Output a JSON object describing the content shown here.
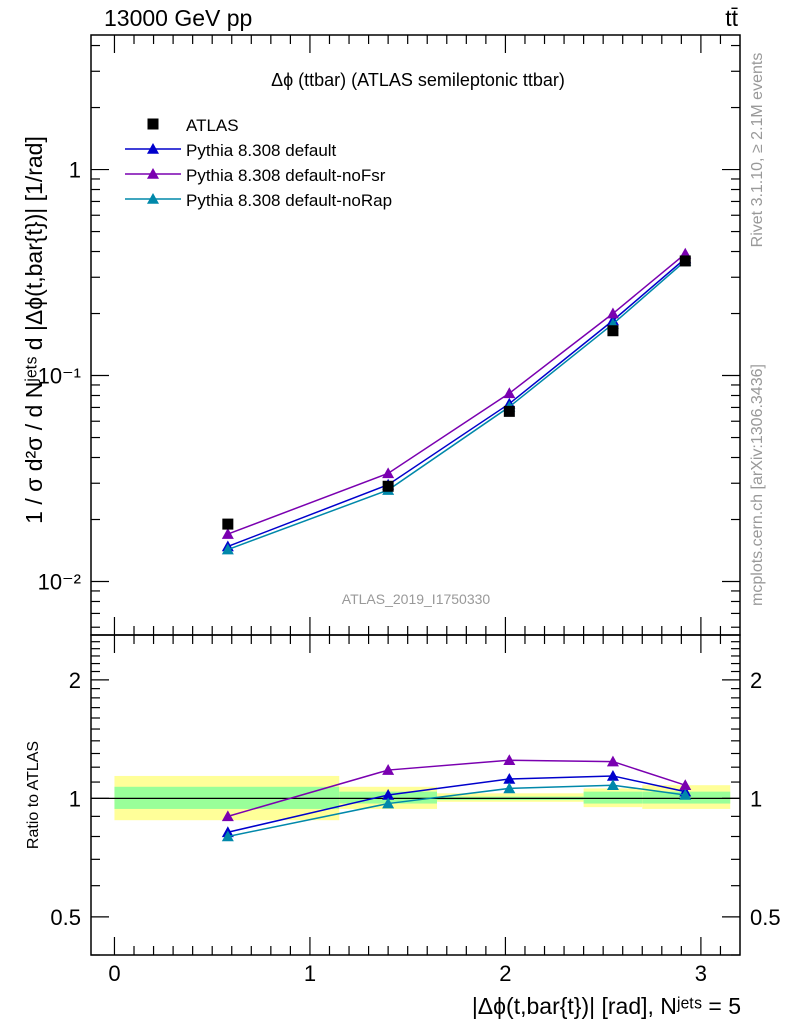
{
  "header": {
    "energy_label": "13000 GeV pp",
    "process_label": "tt̄"
  },
  "side": {
    "rivet_label": "Rivet 3.1.10, ≥ 2.1M events",
    "source_label": "mcplots.cern.ch [arXiv:1306.3436]"
  },
  "chart_data": [
    {
      "type": "line",
      "title": "Δϕ (ttbar) (ATLAS semileptonic ttbar)",
      "ylabel": "1 / σ d²σ / d Nʲᵉᵗˢ d |Δϕ(t,bar{t})| [1/rad]",
      "xlabel": "",
      "yscale": "log",
      "xlim": [
        -0.12,
        3.2
      ],
      "ylim": [
        0.0055,
        4.5
      ],
      "yticks": [
        0.01,
        0.1,
        1
      ],
      "ytick_labels": [
        "10⁻²",
        "10⁻¹",
        "1"
      ],
      "analysis_label": "ATLAS_2019_I1750330",
      "legend_position": "top-left",
      "grid": false,
      "x": [
        0.58,
        1.4,
        2.02,
        2.55,
        2.92
      ],
      "data": {
        "name": "ATLAS",
        "marker": "square",
        "color": "#000000",
        "values": [
          0.019,
          0.029,
          0.067,
          0.165,
          0.36
        ]
      },
      "series": [
        {
          "name": "Pythia 8.308 default",
          "color": "#0000cc",
          "marker": "triangle",
          "values": [
            0.0148,
            0.0295,
            0.073,
            0.185,
            0.37
          ]
        },
        {
          "name": "Pythia 8.308 default-noFsr",
          "color": "#7a00b0",
          "marker": "triangle",
          "values": [
            0.017,
            0.0335,
            0.082,
            0.2,
            0.39
          ]
        },
        {
          "name": "Pythia 8.308 default-noRap",
          "color": "#0088aa",
          "marker": "triangle",
          "values": [
            0.0143,
            0.0278,
            0.0705,
            0.178,
            0.36
          ]
        }
      ]
    },
    {
      "type": "line",
      "title": "",
      "ylabel": "Ratio to ATLAS",
      "xlabel": "|Δϕ(t,bar{t})| [rad], Nʲᵉᵗˢ = 5",
      "yscale": "log",
      "xlim": [
        -0.12,
        3.2
      ],
      "ylim": [
        0.4,
        2.6
      ],
      "yticks": [
        0.5,
        1,
        2
      ],
      "ytick_labels": [
        "0.5",
        "1",
        "2"
      ],
      "xticks": [
        0,
        1,
        2,
        3
      ],
      "xtick_labels": [
        "0",
        "1",
        "2",
        "3"
      ],
      "reference": 1,
      "bands": [
        {
          "x0": 0.0,
          "x1": 1.15,
          "yellow": [
            0.88,
            1.14
          ],
          "green": [
            0.94,
            1.07
          ]
        },
        {
          "x0": 1.15,
          "x1": 1.65,
          "yellow": [
            0.94,
            1.07
          ],
          "green": [
            0.97,
            1.04
          ]
        },
        {
          "x0": 1.65,
          "x1": 2.4,
          "yellow": [
            0.98,
            1.03
          ],
          "green": [
            0.99,
            1.01
          ]
        },
        {
          "x0": 2.4,
          "x1": 2.7,
          "yellow": [
            0.95,
            1.06
          ],
          "green": [
            0.97,
            1.04
          ]
        },
        {
          "x0": 2.7,
          "x1": 3.15,
          "yellow": [
            0.94,
            1.08
          ],
          "green": [
            0.97,
            1.04
          ]
        }
      ],
      "x": [
        0.58,
        1.4,
        2.02,
        2.55,
        2.92
      ],
      "series": [
        {
          "name": "Pythia 8.308 default",
          "color": "#0000cc",
          "values": [
            0.82,
            1.02,
            1.12,
            1.14,
            1.04
          ]
        },
        {
          "name": "Pythia 8.308 default-noFsr",
          "color": "#7a00b0",
          "values": [
            0.9,
            1.18,
            1.25,
            1.24,
            1.08
          ]
        },
        {
          "name": "Pythia 8.308 default-noRap",
          "color": "#0088aa",
          "values": [
            0.8,
            0.97,
            1.06,
            1.08,
            1.02
          ]
        }
      ]
    }
  ]
}
